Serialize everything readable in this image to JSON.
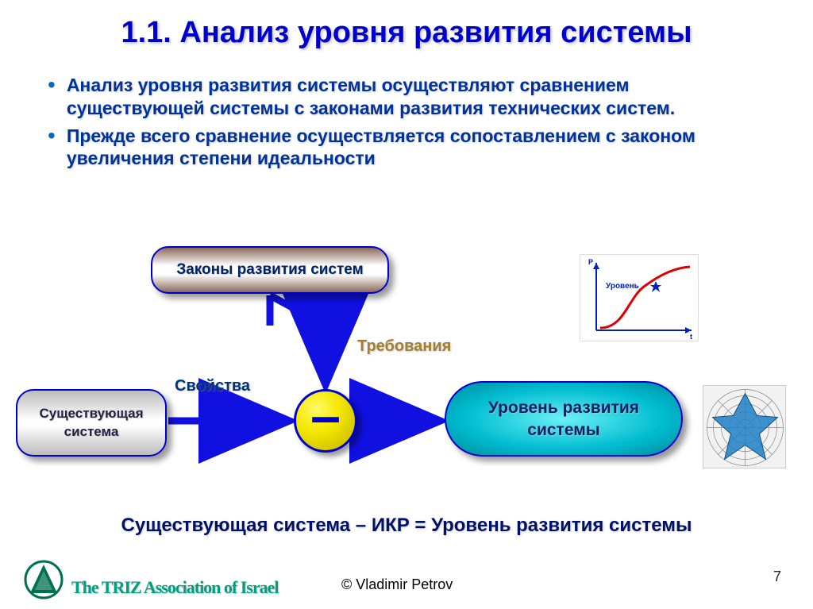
{
  "title": "1.1. Анализ уровня развития системы",
  "bullets": [
    "Анализ уровня развития системы осуществляют сравнением существующей системы с законами развития технических систем.",
    "Прежде всего сравнение осуществляется сопоставлением с законом увеличения степени идеальности"
  ],
  "diagram": {
    "laws_box": "Законы развития систем",
    "existing_box": "Существующая система",
    "result_box": "Уровень развития системы",
    "minus": "–",
    "label_requirements": "Требования",
    "label_properties": "Свойства",
    "colors": {
      "arrow": "#1010e0",
      "node_border": "#0000cc",
      "laws_grad_dark": "#8a6a5a",
      "existing_grad_dark": "#bcbcbc",
      "result_grad_mid": "#00bcd0",
      "circle_fill": "#f5e800"
    }
  },
  "formula": "Существующая система – ИКР  = Уровень развития системы",
  "scurve": {
    "y_label": "P",
    "x_label": "t",
    "annotation": "Уровень",
    "curve_color": "#e00000",
    "axis_color": "#0020c0",
    "marker_color": "#0020c0",
    "marker_at": [
      0.62,
      0.66
    ],
    "xlim": [
      0,
      1
    ],
    "ylim": [
      0,
      1
    ]
  },
  "radar": {
    "rings": 5,
    "spokes": 8,
    "grid_color": "#888888",
    "star_color": "#2080c8",
    "values": [
      0.9,
      0.45,
      0.85,
      0.4,
      0.9,
      0.45,
      0.85,
      0.4
    ]
  },
  "footer": {
    "org": "The TRIZ Association of Israel",
    "author": "© Vladimir Petrov",
    "page": "7"
  }
}
